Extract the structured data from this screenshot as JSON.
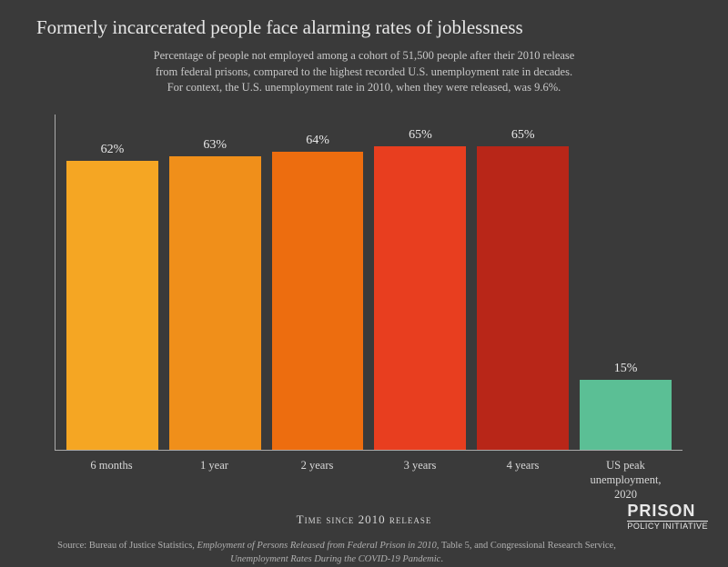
{
  "title": "Formerly incarcerated people face alarming rates of joblessness",
  "subtitle_line1": "Percentage of people not employed among a cohort of 51,500 people after their 2010 release",
  "subtitle_line2": "from federal prisons, compared to the highest recorded U.S. unemployment rate in decades.",
  "subtitle_line3": "For context, the U.S. unemployment rate in 2010, when they were released, was 9.6%.",
  "chart": {
    "type": "bar",
    "ylim_max": 72,
    "background_color": "#3a3a3a",
    "axis_color": "#aaaaaa",
    "bars": [
      {
        "label": "6 months",
        "value": 62,
        "display": "62%",
        "color": "#f5a623"
      },
      {
        "label": "1 year",
        "value": 63,
        "display": "63%",
        "color": "#f08f1a"
      },
      {
        "label": "2 years",
        "value": 64,
        "display": "64%",
        "color": "#ed6d0f"
      },
      {
        "label": "3 years",
        "value": 65,
        "display": "65%",
        "color": "#e83e1f"
      },
      {
        "label": "4 years",
        "value": 65,
        "display": "65%",
        "color": "#b82618"
      },
      {
        "label": "US peak unemployment, 2020",
        "value": 15,
        "display": "15%",
        "color": "#5bbf95"
      }
    ],
    "axis_title": "Time since 2010 release"
  },
  "source_prefix": "Source: Bureau of Justice Statistics, ",
  "source_em1": "Employment of Persons Released from Federal Prison in 2010",
  "source_mid": ", Table 5, and Congressional Research Service, ",
  "source_em2": "Unemployment Rates During the COVID-19 Pandemic",
  "source_suffix": ".",
  "logo": {
    "top": "PRISON",
    "bottom": "POLICY INITIATIVE"
  }
}
